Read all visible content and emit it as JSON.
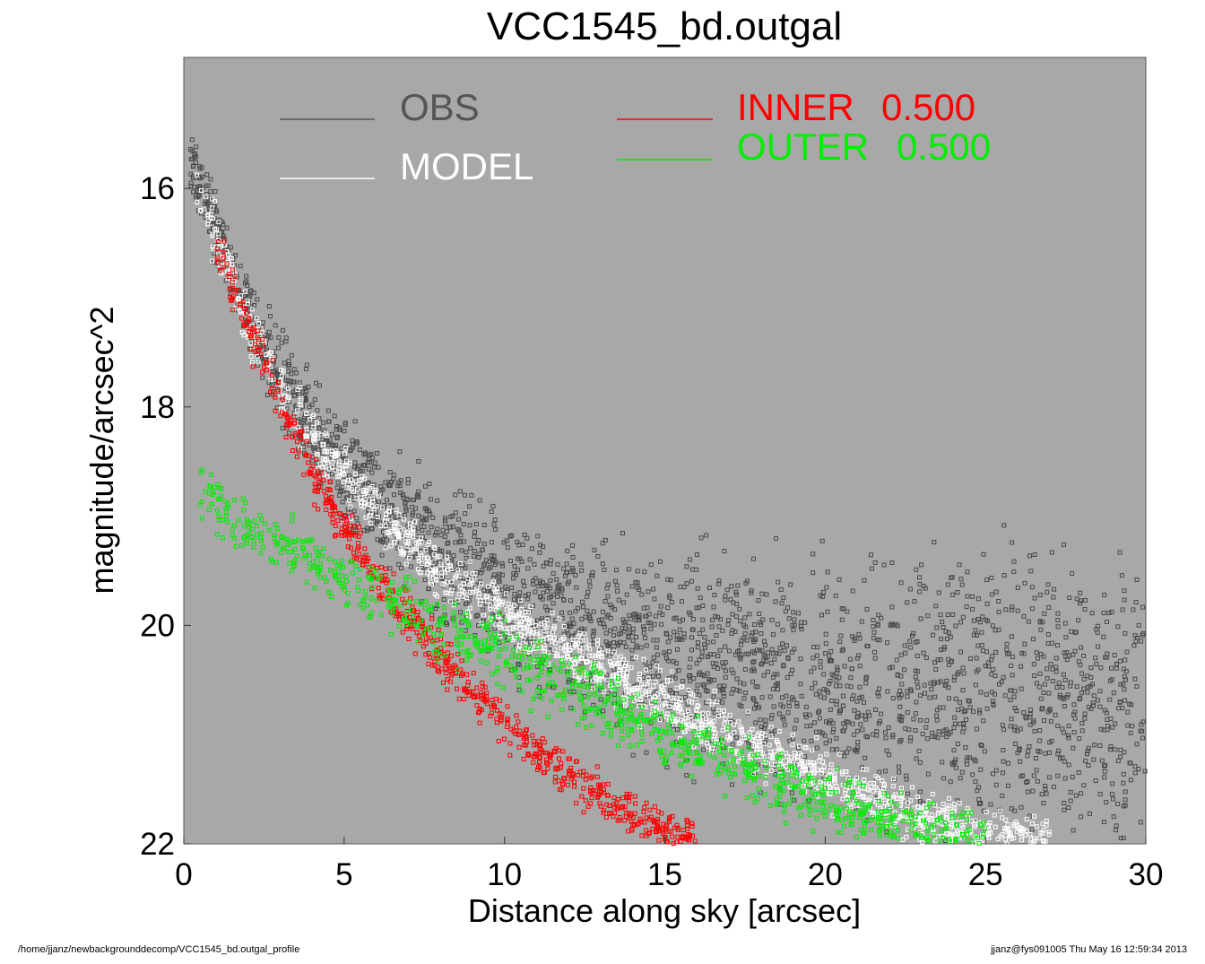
{
  "chart_data": {
    "type": "scatter",
    "title": "VCC1545_bd.outgal",
    "xlabel": "Distance along sky [arcsec]",
    "ylabel": "magnitude/arcsec^2",
    "xlim": [
      0,
      30
    ],
    "ylim": [
      22,
      14.8
    ],
    "y_inverted": true,
    "x_ticks": [
      "0",
      "5",
      "10",
      "15",
      "20",
      "25",
      "30"
    ],
    "y_ticks": [
      "16",
      "18",
      "20",
      "22"
    ],
    "background_color": "#a8a8a8",
    "grid": false,
    "legend": [
      {
        "label": "OBS",
        "color": "#555555"
      },
      {
        "label": "MODEL",
        "color": "#ffffff"
      },
      {
        "label": "INNER",
        "value": "0.500",
        "color": "#ff0000"
      },
      {
        "label": "OUTER",
        "value": "0.500",
        "color": "#00ee00"
      }
    ],
    "series": [
      {
        "name": "OBS",
        "color": "#4a4a4a",
        "x": [
          0.2,
          0.5,
          1,
          1.5,
          2,
          3,
          4,
          5,
          6,
          7,
          8,
          10,
          12,
          14,
          16,
          18,
          20,
          22,
          24,
          26,
          28,
          30
        ],
        "y": [
          15.75,
          16.0,
          16.35,
          16.75,
          17.1,
          17.7,
          18.2,
          18.55,
          18.85,
          19.1,
          19.3,
          19.65,
          19.95,
          20.15,
          20.3,
          20.45,
          20.55,
          20.6,
          20.65,
          20.7,
          20.75,
          20.8
        ],
        "scatter_band": 0.35
      },
      {
        "name": "MODEL",
        "color": "#ffffff",
        "x": [
          0.4,
          1,
          1.5,
          2,
          2.5,
          3,
          4,
          5,
          6,
          7,
          8,
          10,
          12,
          14,
          16,
          18,
          20,
          22,
          24,
          26,
          27
        ],
        "y": [
          15.95,
          16.45,
          16.85,
          17.2,
          17.5,
          17.8,
          18.25,
          18.6,
          18.95,
          19.25,
          19.5,
          19.9,
          20.25,
          20.55,
          20.85,
          21.15,
          21.4,
          21.65,
          21.85,
          22.0,
          22.0
        ],
        "scatter_band": 0.12
      },
      {
        "name": "INNER",
        "color": "#ff0000",
        "x": [
          1,
          1.5,
          2,
          2.5,
          3,
          3.5,
          4,
          4.5,
          5,
          6,
          7,
          8,
          9,
          10,
          11,
          12,
          13,
          14,
          15,
          16
        ],
        "y": [
          16.5,
          16.9,
          17.25,
          17.6,
          17.95,
          18.3,
          18.6,
          18.85,
          19.1,
          19.55,
          19.95,
          20.3,
          20.6,
          20.9,
          21.15,
          21.35,
          21.55,
          21.75,
          21.9,
          22.0
        ],
        "scatter_band": 0.1
      },
      {
        "name": "OUTER",
        "color": "#00ee00",
        "x": [
          0.5,
          2,
          4,
          6,
          8,
          10,
          12,
          14,
          16,
          18,
          20,
          22,
          24,
          25
        ],
        "y": [
          18.85,
          19.1,
          19.4,
          19.7,
          20.0,
          20.3,
          20.55,
          20.85,
          21.15,
          21.4,
          21.6,
          21.8,
          21.95,
          22.0
        ],
        "scatter_band": 0.14
      }
    ]
  },
  "footer": {
    "path": "/home/jjanz/newbackgrounddecomp/VCC1545_bd.outgal_profile",
    "stamp": "jjanz@fys091005  Thu May 16 12:59:34 2013"
  }
}
